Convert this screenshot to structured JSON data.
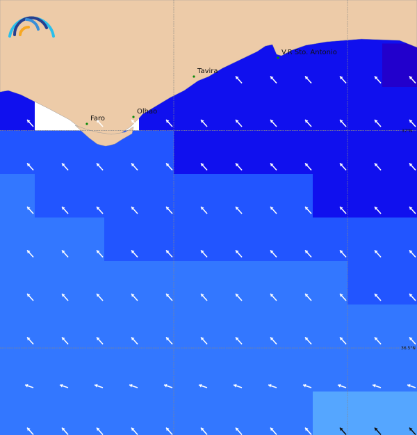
{
  "map": {
    "colors": {
      "land": "#edcba8",
      "nodata": "#ffffff",
      "levels": [
        "#2200cc",
        "#1010ee",
        "#2255ff",
        "#3377ff",
        "#55a6ff"
      ],
      "arrow_light": "#ffffff",
      "arrow_dark": "#111111",
      "grid": "#888888"
    },
    "cities": [
      {
        "name": "Faro"
      },
      {
        "name": "Olhao"
      },
      {
        "name": "Tavira"
      },
      {
        "name": "V.R Sto. Antonio"
      }
    ],
    "latitude_labels": [
      "37°N",
      "36.5°N"
    ],
    "level_grid": [
      [
        -1,
        -1,
        -1,
        -1,
        -1,
        -1,
        -1,
        -1,
        -1,
        -1,
        -1,
        -1
      ],
      [
        -1,
        -1,
        -1,
        -1,
        -1,
        -1,
        1,
        1,
        1,
        1,
        1,
        0
      ],
      [
        1,
        -2,
        -2,
        -2,
        1,
        1,
        1,
        1,
        1,
        1,
        1,
        1
      ],
      [
        2,
        2,
        2,
        2,
        2,
        1,
        1,
        1,
        1,
        1,
        1,
        1
      ],
      [
        3,
        2,
        2,
        2,
        2,
        2,
        2,
        2,
        2,
        1,
        1,
        1
      ],
      [
        3,
        3,
        3,
        2,
        2,
        2,
        2,
        2,
        2,
        2,
        2,
        2
      ],
      [
        3,
        3,
        3,
        3,
        3,
        3,
        3,
        3,
        3,
        3,
        2,
        2
      ],
      [
        3,
        3,
        3,
        3,
        3,
        3,
        3,
        3,
        3,
        3,
        3,
        3
      ],
      [
        3,
        3,
        3,
        3,
        3,
        3,
        3,
        3,
        3,
        3,
        3,
        3
      ],
      [
        3,
        3,
        3,
        3,
        3,
        3,
        3,
        3,
        3,
        4,
        4,
        4
      ]
    ]
  }
}
